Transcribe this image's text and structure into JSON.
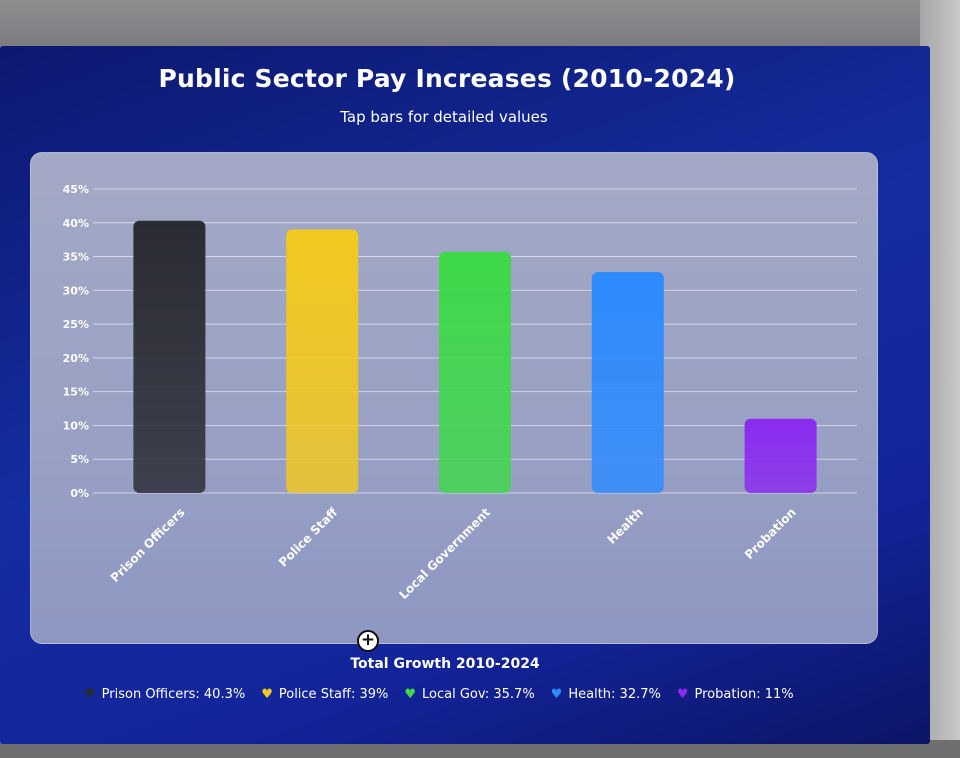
{
  "chart_data": {
    "type": "bar",
    "title": "Public Sector Pay Increases (2010-2024)",
    "subtitle": "Tap bars for detailed values",
    "categories": [
      "Prison Officers",
      "Police Staff",
      "Local Government",
      "Health",
      "Probation"
    ],
    "values": [
      40.3,
      39,
      35.7,
      32.7,
      11
    ],
    "colors": [
      "#2a2b33",
      "#f2c91f",
      "#3fd84a",
      "#2d8bff",
      "#8a2bf0"
    ],
    "ylim": [
      0,
      45
    ],
    "yticks": [
      "0%",
      "5%",
      "10%",
      "15%",
      "20%",
      "25%",
      "30%",
      "35%",
      "40%",
      "45%"
    ],
    "grid": true
  },
  "legend": {
    "title": "Total Growth 2010-2024",
    "items": [
      {
        "label": "Prison Officers: 40.3%",
        "icon": "black-heart-icon",
        "color": "#2a2b33"
      },
      {
        "label": "Police Staff: 39%",
        "icon": "yellow-heart-icon",
        "color": "#f2c91f"
      },
      {
        "label": "Local Gov: 35.7%",
        "icon": "green-heart-icon",
        "color": "#3fd84a"
      },
      {
        "label": "Health: 32.7%",
        "icon": "blue-heart-icon",
        "color": "#2d8bff"
      },
      {
        "label": "Probation: 11%",
        "icon": "purple-heart-icon",
        "color": "#8a2bf0"
      }
    ]
  }
}
